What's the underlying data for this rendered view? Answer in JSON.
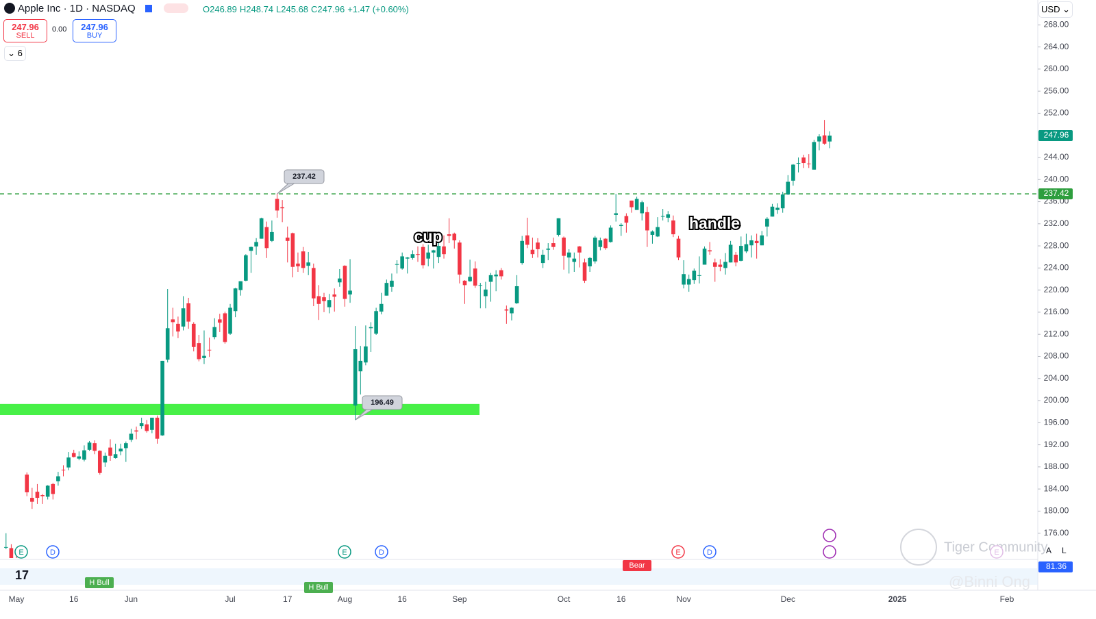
{
  "header": {
    "symbol": "Apple Inc · 1D · NASDAQ",
    "open": "O246.89",
    "high": "H248.74",
    "low": "L245.68",
    "close": "C247.96",
    "change": "+1.47 (+0.60%)",
    "currency": "USD",
    "sell_label": "SELL",
    "buy_label": "BUY",
    "spread": "0.00",
    "indicators_count": "6",
    "controls": [
      "A",
      "L"
    ]
  },
  "chart_data": {
    "type": "candlestick",
    "categories": [
      null,
      null,
      "May",
      null,
      null,
      null,
      null,
      null,
      null,
      null,
      null,
      null,
      null,
      "16",
      null,
      null,
      null,
      null,
      null,
      null,
      null,
      null,
      null,
      null,
      "Jun",
      null,
      null,
      null,
      null,
      null,
      null,
      null,
      null,
      null,
      null,
      null,
      null,
      null,
      null,
      null,
      null,
      null,
      null,
      "Jul",
      null,
      null,
      null,
      null,
      null,
      null,
      null,
      null,
      null,
      null,
      "17",
      null,
      null,
      null,
      null,
      null,
      null,
      null,
      null,
      null,
      null,
      "Aug",
      null,
      null,
      null,
      null,
      null,
      null,
      null,
      null,
      null,
      null,
      "16",
      null,
      null,
      null,
      null,
      null,
      null,
      null,
      null,
      null,
      null,
      "Sep",
      null,
      null,
      null,
      null,
      null,
      null,
      null,
      null,
      null,
      null,
      null,
      null,
      null,
      null,
      null,
      null,
      null,
      null,
      null,
      "Oct",
      null,
      null,
      null,
      null,
      null,
      null,
      null,
      null,
      null,
      null,
      "16",
      null,
      null,
      null,
      null,
      null,
      null,
      null,
      null,
      null,
      null,
      null,
      "Nov",
      null,
      null,
      null,
      null,
      null,
      null,
      null,
      null,
      null,
      null,
      null,
      null,
      null,
      null,
      null,
      null,
      null,
      null,
      null,
      "Dec",
      null,
      null,
      null,
      null,
      null,
      null,
      null,
      null,
      null,
      null,
      null,
      null,
      null,
      null,
      null,
      null,
      null,
      null,
      null,
      null,
      "2025",
      null,
      null,
      null,
      null,
      null,
      null,
      null,
      null,
      null,
      null,
      null,
      null,
      null,
      null,
      null,
      null,
      null,
      null,
      null,
      null,
      "Feb",
      null,
      null,
      null,
      null,
      null
    ],
    "open": [
      173.4,
      173.3,
      169.6,
      172.5,
      186.6,
      182.4,
      183.5,
      182.9,
      182.6,
      184.9,
      185.4,
      187.5,
      187.9,
      190.5,
      189.5,
      189.3,
      191.1,
      192.3,
      190.9,
      188.8,
      191.5,
      189.6,
      190.8,
      191.4,
      192.9,
      194.6,
      195.4,
      195.7,
      194.7,
      196.9,
      193.7,
      207.4,
      214.7,
      213.9,
      213.4,
      217.6,
      213.9,
      210.4,
      207.7,
      209.2,
      211.5,
      214.7,
      215.8,
      212.1,
      216.2,
      220.0,
      221.7,
      227.1,
      227.9,
      229.3,
      231.4,
      228.9,
      236.5,
      235.0,
      229.5,
      230.3,
      224.8,
      227.0,
      224.4,
      224.0,
      218.9,
      218.7,
      216.9,
      219.2,
      221.4,
      224.4,
      219.2,
      199.1,
      205.3,
      206.9,
      213.1,
      212.1,
      216.1,
      219.0,
      220.6,
      224.6,
      223.9,
      225.7,
      225.8,
      226.5,
      227.8,
      225.7,
      226.8,
      226.0,
      227.9,
      230.1,
      230.2,
      228.6,
      221.7,
      221.6,
      223.9,
      220.8,
      218.9,
      221.5,
      222.5,
      223.6,
      216.5,
      215.8,
      217.6,
      224.9,
      229.9,
      227.3,
      228.6,
      224.9,
      227.3,
      228.5,
      230.0,
      229.5,
      225.9,
      225.1,
      227.9,
      225.0,
      224.3,
      225.2,
      227.8,
      229.3,
      228.7,
      233.6,
      231.6,
      233.4,
      236.2,
      234.5,
      233.9,
      234.1,
      230.0,
      229.7,
      233.3,
      233.1,
      232.6,
      229.3,
      221.0,
      221.0,
      221.8,
      222.6,
      224.6,
      227.2,
      225.0,
      224.6,
      224.0,
      225.0,
      226.4,
      225.3,
      227.0,
      228.1,
      228.9,
      228.1,
      231.5,
      233.3,
      234.5,
      234.8,
      237.3,
      239.8,
      242.9,
      244.0,
      242.9,
      241.8,
      246.9,
      248.0,
      246.89,
      null,
      null,
      null,
      null,
      null,
      null,
      null,
      null,
      null,
      null,
      null,
      null,
      null,
      null,
      null,
      null,
      null,
      null,
      null,
      null,
      null,
      null,
      null,
      null,
      null,
      null,
      null,
      null,
      null,
      null,
      null,
      null,
      null,
      null,
      null,
      null,
      null,
      null,
      null
    ],
    "high": [
      176.0,
      174.0,
      172.7,
      173.4,
      187.0,
      184.2,
      184.9,
      183.1,
      184.7,
      185.1,
      187.1,
      188.3,
      190.7,
      191.1,
      190.8,
      191.9,
      192.7,
      192.8,
      191.0,
      190.6,
      193.0,
      192.2,
      192.2,
      192.6,
      194.9,
      195.3,
      196.9,
      196.5,
      196.9,
      197.3,
      207.2,
      220.2,
      216.8,
      215.2,
      218.9,
      218.6,
      214.2,
      211.9,
      212.7,
      211.4,
      214.9,
      215.7,
      216.1,
      217.5,
      220.4,
      221.6,
      226.5,
      227.9,
      229.4,
      233.1,
      232.4,
      232.6,
      237.42,
      236.3,
      231.5,
      230.4,
      226.8,
      227.8,
      226.9,
      224.8,
      220.9,
      219.5,
      219.3,
      220.3,
      223.8,
      224.5,
      225.6,
      213.5,
      209.9,
      213.6,
      214.2,
      216.8,
      219.5,
      221.9,
      223.0,
      225.4,
      226.8,
      226.0,
      227.2,
      227.9,
      228.3,
      228.2,
      227.3,
      228.9,
      229.9,
      233.0,
      230.4,
      229.0,
      221.8,
      225.5,
      225.2,
      221.3,
      221.5,
      223.1,
      223.6,
      224.0,
      217.2,
      216.9,
      222.7,
      229.8,
      233.1,
      229.5,
      229.4,
      227.3,
      228.5,
      229.5,
      233.0,
      229.7,
      227.4,
      226.8,
      228.0,
      225.7,
      226.0,
      229.8,
      229.5,
      229.4,
      231.7,
      237.4,
      232.1,
      233.9,
      236.2,
      236.9,
      236.2,
      235.1,
      230.8,
      233.2,
      234.7,
      234.3,
      233.5,
      229.8,
      225.4,
      222.8,
      223.9,
      226.1,
      227.9,
      228.7,
      225.7,
      225.6,
      226.7,
      228.9,
      226.9,
      229.7,
      230.2,
      229.9,
      230.2,
      230.7,
      233.2,
      235.6,
      235.7,
      237.8,
      240.8,
      242.8,
      244.0,
      244.5,
      244.6,
      247.2,
      248.2,
      250.8,
      248.74,
      null,
      null,
      null,
      null,
      null,
      null,
      null,
      null,
      null,
      null,
      null,
      null,
      null,
      null,
      null,
      null,
      null,
      null,
      null,
      null,
      null,
      null,
      null,
      null,
      null,
      null,
      null,
      null,
      null,
      null,
      null,
      null,
      null,
      null,
      null,
      null,
      null,
      null,
      null
    ],
    "low": [
      173.1,
      170.0,
      169.1,
      170.9,
      182.7,
      180.4,
      181.3,
      181.3,
      182.1,
      182.1,
      184.6,
      186.3,
      187.4,
      189.7,
      189.2,
      189.0,
      190.9,
      190.3,
      186.6,
      188.0,
      189.1,
      189.5,
      190.1,
      188.9,
      192.5,
      193.0,
      194.9,
      194.2,
      194.1,
      192.2,
      193.6,
      206.9,
      211.6,
      211.3,
      212.7,
      213.0,
      208.9,
      207.1,
      206.6,
      207.9,
      211.1,
      212.4,
      210.3,
      211.9,
      215.1,
      219.0,
      221.6,
      223.1,
      226.4,
      229.3,
      225.8,
      228.7,
      233.1,
      232.3,
      225.0,
      222.3,
      223.3,
      223.1,
      222.7,
      217.1,
      214.6,
      216.0,
      215.8,
      216.1,
      220.6,
      217.0,
      217.7,
      196.49,
      201.1,
      206.4,
      208.8,
      211.9,
      215.6,
      219.0,
      219.7,
      223.0,
      223.7,
      223.0,
      225.5,
      225.1,
      223.9,
      224.3,
      223.9,
      224.9,
      225.7,
      228.5,
      227.5,
      221.2,
      217.5,
      221.5,
      220.4,
      216.7,
      216.7,
      217.9,
      219.8,
      221.9,
      213.9,
      214.5,
      217.5,
      224.6,
      227.6,
      225.8,
      225.9,
      224.0,
      225.4,
      227.3,
      229.7,
      223.7,
      223.0,
      223.3,
      224.1,
      221.3,
      223.3,
      224.8,
      227.2,
      227.3,
      228.6,
      232.4,
      229.8,
      230.4,
      234.0,
      234.5,
      232.6,
      227.8,
      228.4,
      229.6,
      232.6,
      232.3,
      229.6,
      225.4,
      220.3,
      219.7,
      221.1,
      221.2,
      224.6,
      226.4,
      221.5,
      223.4,
      222.8,
      225.0,
      224.3,
      225.2,
      226.7,
      225.9,
      225.7,
      228.1,
      229.7,
      233.3,
      233.8,
      234.0,
      237.2,
      238.9,
      241.3,
      242.1,
      242.1,
      241.8,
      245.3,
      246.3,
      245.68,
      null,
      null,
      null,
      null,
      null,
      null,
      null,
      null,
      null,
      null,
      null,
      null,
      null,
      null,
      null,
      null,
      null,
      null,
      null,
      null,
      null,
      null,
      null,
      null,
      null,
      null,
      null,
      null,
      null,
      null,
      null,
      null,
      null,
      null,
      null,
      null,
      null,
      null,
      null
    ],
    "close": [
      173.5,
      170.3,
      169.3,
      173.0,
      183.4,
      181.7,
      182.4,
      182.7,
      184.6,
      183.1,
      186.3,
      187.4,
      189.7,
      189.8,
      189.9,
      191.0,
      192.4,
      190.9,
      186.9,
      190.0,
      190.0,
      190.3,
      191.3,
      192.3,
      194.0,
      194.4,
      195.9,
      194.5,
      196.9,
      193.1,
      207.2,
      213.1,
      214.2,
      212.5,
      216.7,
      214.3,
      209.7,
      207.5,
      208.1,
      209.1,
      213.3,
      214.1,
      210.6,
      216.8,
      220.3,
      221.6,
      226.3,
      227.8,
      228.7,
      233.0,
      227.6,
      230.5,
      234.4,
      234.8,
      228.9,
      224.2,
      224.3,
      224.0,
      225.0,
      218.5,
      217.5,
      218.0,
      218.2,
      218.8,
      222.1,
      218.4,
      219.9,
      209.3,
      207.2,
      209.8,
      213.3,
      216.2,
      217.5,
      221.3,
      221.7,
      224.7,
      226.1,
      225.9,
      226.5,
      226.4,
      224.5,
      226.8,
      227.2,
      228.0,
      226.5,
      229.8,
      229.0,
      222.8,
      220.9,
      222.4,
      220.8,
      220.9,
      220.1,
      222.7,
      222.8,
      222.5,
      216.3,
      216.8,
      220.7,
      228.9,
      228.2,
      226.5,
      227.4,
      226.4,
      227.5,
      227.8,
      233.0,
      226.2,
      226.8,
      225.7,
      226.8,
      221.7,
      225.8,
      229.5,
      229.0,
      227.6,
      231.3,
      233.9,
      231.8,
      232.2,
      235.0,
      236.5,
      235.9,
      230.8,
      230.6,
      231.4,
      233.4,
      233.7,
      230.1,
      225.9,
      222.9,
      222.0,
      223.5,
      222.7,
      227.5,
      227.0,
      224.2,
      224.2,
      225.1,
      228.2,
      225.0,
      228.0,
      228.3,
      229.0,
      228.5,
      229.9,
      232.9,
      235.1,
      234.9,
      237.3,
      239.6,
      242.7,
      243.0,
      243.0,
      242.8,
      246.8,
      247.8,
      246.5,
      247.96,
      null,
      null,
      null,
      null,
      null,
      null,
      null,
      null,
      null,
      null,
      null,
      null,
      null,
      null,
      null,
      null,
      null,
      null,
      null,
      null,
      null,
      null,
      null,
      null,
      null,
      null,
      null,
      null,
      null,
      null,
      null,
      null,
      null,
      null,
      null,
      null,
      null,
      null,
      null
    ],
    "up_color": "#089981",
    "down_color": "#f23645",
    "ylim": [
      171.5,
      272.5
    ],
    "yticks": [
      {
        "value": 176,
        "label": "176.00"
      },
      {
        "value": 180,
        "label": "180.00"
      },
      {
        "value": 184,
        "label": "184.00"
      },
      {
        "value": 188,
        "label": "188.00"
      },
      {
        "value": 192,
        "label": "192.00"
      },
      {
        "value": 196,
        "label": "196.00"
      },
      {
        "value": 200,
        "label": "200.00"
      },
      {
        "value": 204,
        "label": "204.00"
      },
      {
        "value": 208,
        "label": "208.00"
      },
      {
        "value": 212,
        "label": "212.00"
      },
      {
        "value": 216,
        "label": "216.00"
      },
      {
        "value": 220,
        "label": "220.00"
      },
      {
        "value": 224,
        "label": "224.00"
      },
      {
        "value": 228,
        "label": "228.00"
      },
      {
        "value": 232,
        "label": "232.00"
      },
      {
        "value": 236,
        "label": "236.00"
      },
      {
        "value": 240,
        "label": "240.00"
      },
      {
        "value": 244,
        "label": "244.00"
      },
      {
        "value": 252,
        "label": "252.00"
      },
      {
        "value": 256,
        "label": "256.00"
      },
      {
        "value": 260,
        "label": "260.00"
      },
      {
        "value": 264,
        "label": "264.00"
      },
      {
        "value": 268,
        "label": "268.00"
      }
    ],
    "resistance": 237.42,
    "resistance_color": "#2e9e3e",
    "zone": {
      "low": 197.4,
      "high": 199.4,
      "color": "#47f047"
    },
    "annotations": [
      "cup",
      "handle"
    ],
    "events": [
      "E",
      "D",
      "E",
      "D",
      "E",
      "D",
      "E"
    ],
    "indicator": {
      "last_value": 81.36,
      "labels": [
        "H Bull",
        "H Bull",
        "Bear"
      ]
    }
  },
  "watermark": {
    "brand": "Tiger Community",
    "author": "@Binni Ong"
  }
}
